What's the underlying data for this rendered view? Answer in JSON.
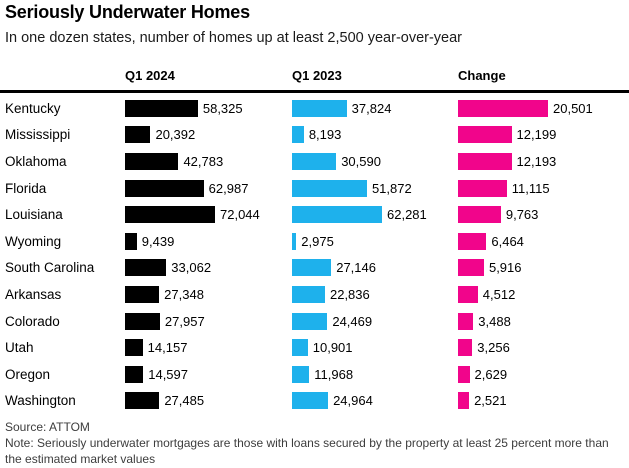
{
  "title": "Seriously Underwater Homes",
  "subtitle": "In one dozen states, number of homes up at least 2,500 year-over-year",
  "footer": {
    "source": "Source: ATTOM",
    "note": "Note: Seriously underwater mortgages are those with loans secured by the property at least 25 percent more than the estimated market values"
  },
  "colors": {
    "q1_2024": "#000000",
    "q1_2023": "#1eb1ec",
    "change": "#f1058b"
  },
  "chart_data": {
    "type": "bar",
    "orientation": "horizontal",
    "layout": "three independent bar columns, each scaled to its own column maximum, value labels at bar ends, grid off",
    "categories": [
      "Kentucky",
      "Mississippi",
      "Oklahoma",
      "Florida",
      "Louisiana",
      "Wyoming",
      "South Carolina",
      "Arkansas",
      "Colorado",
      "Utah",
      "Oregon",
      "Washington"
    ],
    "series": [
      {
        "name": "Q1 2024",
        "color_key": "q1_2024",
        "values": [
          58325,
          20392,
          42783,
          62987,
          72044,
          9439,
          33062,
          27348,
          27957,
          14157,
          14597,
          27485
        ]
      },
      {
        "name": "Q1 2023",
        "color_key": "q1_2023",
        "values": [
          37824,
          8193,
          30590,
          51872,
          62281,
          2975,
          27146,
          22836,
          24469,
          10901,
          11968,
          24964
        ]
      },
      {
        "name": "Change",
        "color_key": "change",
        "values": [
          20501,
          12199,
          12193,
          11115,
          9763,
          6464,
          5916,
          4512,
          3488,
          3256,
          2629,
          2521
        ]
      }
    ],
    "title": "Seriously Underwater Homes",
    "subtitle": "In one dozen states, number of homes up at least 2,500 year-over-year",
    "value_format": "comma-thousands"
  }
}
